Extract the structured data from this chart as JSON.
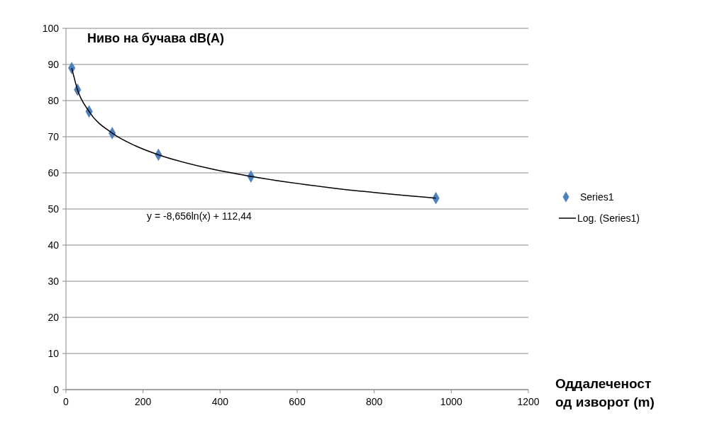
{
  "chart_data": {
    "type": "scatter",
    "title": "Ниво на бучава dB(A)",
    "xlabel": "Оддалеченост од изворот (m)",
    "xlim": [
      0,
      1200
    ],
    "xticks": [
      0,
      200,
      400,
      600,
      800,
      1000,
      1200
    ],
    "ylim": [
      0,
      100
    ],
    "yticks": [
      0,
      10,
      20,
      30,
      40,
      50,
      60,
      70,
      80,
      90,
      100
    ],
    "grid": "y",
    "legend": "right",
    "annotations": [
      "y = -8,656ln(x) + 112,44"
    ],
    "series": [
      {
        "name": "Series1",
        "marker": "diamond",
        "color": "#4f81bd",
        "x": [
          15,
          30,
          60,
          120,
          240,
          480,
          960
        ],
        "values": [
          89,
          83,
          77,
          71,
          65,
          59,
          53
        ]
      },
      {
        "name": "Log. (Series1)",
        "type": "line",
        "color": "#000000",
        "line_style": "solid",
        "x": [
          15,
          30,
          60,
          120,
          180,
          240,
          360,
          480,
          700,
          960
        ],
        "values": [
          89,
          83,
          77,
          71,
          67.5,
          65,
          61.5,
          59,
          55.7,
          53
        ]
      }
    ]
  }
}
